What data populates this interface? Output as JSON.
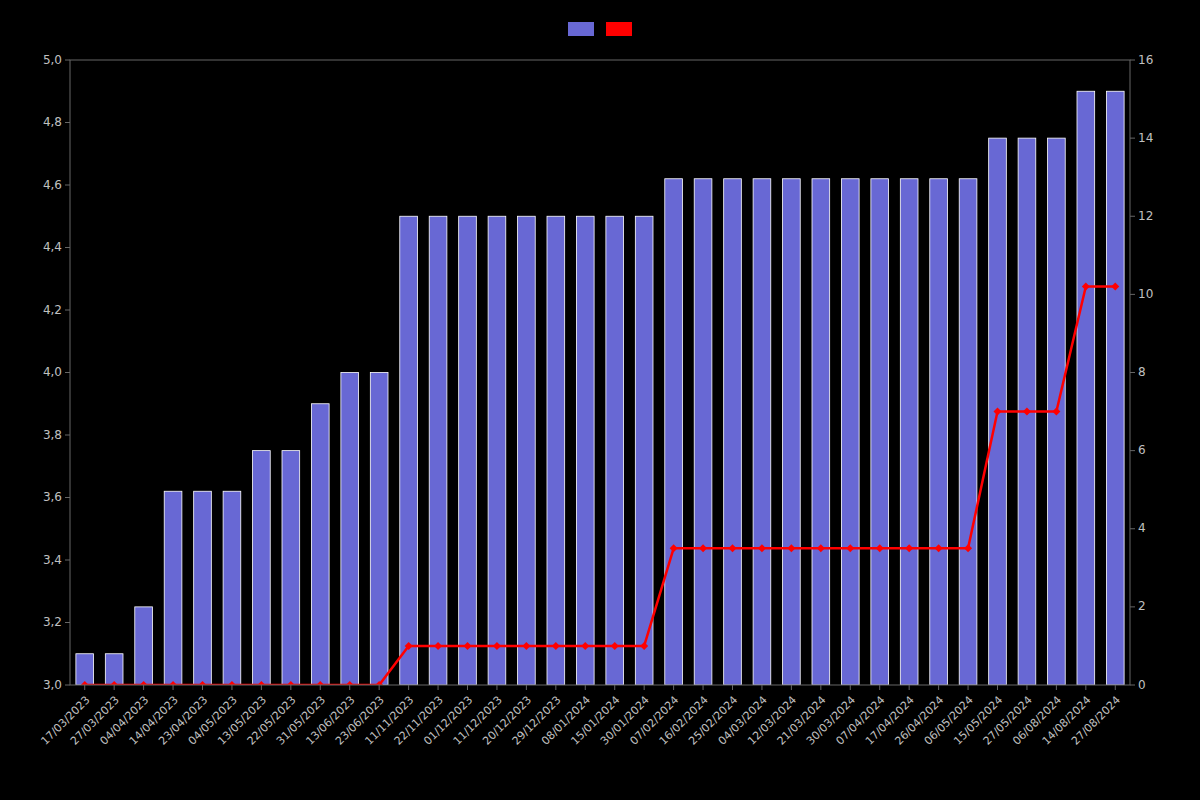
{
  "chart_data": {
    "type": "bar",
    "categories": [
      "17/03/2023",
      "27/03/2023",
      "04/04/2023",
      "14/04/2023",
      "23/04/2023",
      "04/05/2023",
      "13/05/2023",
      "22/05/2023",
      "31/05/2023",
      "13/06/2023",
      "23/06/2023",
      "11/11/2023",
      "22/11/2023",
      "01/12/2023",
      "11/12/2023",
      "20/12/2023",
      "29/12/2023",
      "08/01/2024",
      "15/01/2024",
      "30/01/2024",
      "07/02/2024",
      "16/02/2024",
      "25/02/2024",
      "04/03/2024",
      "12/03/2024",
      "21/03/2024",
      "30/03/2024",
      "07/04/2024",
      "17/04/2024",
      "26/04/2024",
      "06/05/2024",
      "15/05/2024",
      "27/05/2024",
      "06/08/2024",
      "14/08/2024",
      "27/08/2024"
    ],
    "series": [
      {
        "type": "bar",
        "color": "#6868d4",
        "values": [
          3.1,
          3.1,
          3.25,
          3.62,
          3.62,
          3.62,
          3.75,
          3.75,
          3.9,
          4.0,
          4.0,
          4.5,
          4.5,
          4.5,
          4.5,
          4.5,
          4.5,
          4.5,
          4.5,
          4.5,
          4.62,
          4.62,
          4.62,
          4.62,
          4.62,
          4.62,
          4.62,
          4.62,
          4.62,
          4.62,
          4.62,
          4.75,
          4.75,
          4.75,
          4.9,
          4.9
        ]
      },
      {
        "type": "line",
        "color": "#ff0000",
        "axis": "y2",
        "marker": "diamond",
        "values": [
          0,
          0,
          0,
          0,
          0,
          0,
          0,
          0,
          0,
          0,
          0,
          1.0,
          1.0,
          1.0,
          1.0,
          1.0,
          1.0,
          1.0,
          1.0,
          1.0,
          3.5,
          3.5,
          3.5,
          3.5,
          3.5,
          3.5,
          3.5,
          3.5,
          3.5,
          3.5,
          3.5,
          7.0,
          7.0,
          7.0,
          10.2,
          10.2
        ]
      }
    ],
    "ylim": [
      3.0,
      5.0
    ],
    "yticks": [
      {
        "value": 3.0,
        "label": "3,0"
      },
      {
        "value": 3.2,
        "label": "3,2"
      },
      {
        "value": 3.4,
        "label": "3,4"
      },
      {
        "value": 3.6,
        "label": "3,6"
      },
      {
        "value": 3.8,
        "label": "3,8"
      },
      {
        "value": 4.0,
        "label": "4,0"
      },
      {
        "value": 4.2,
        "label": "4,2"
      },
      {
        "value": 4.4,
        "label": "4,4"
      },
      {
        "value": 4.6,
        "label": "4,6"
      },
      {
        "value": 4.8,
        "label": "4,8"
      },
      {
        "value": 5.0,
        "label": "5,0"
      }
    ],
    "y2lim": [
      0,
      16
    ],
    "y2ticks": [
      0,
      2,
      4,
      6,
      8,
      10,
      12,
      14,
      16
    ],
    "grid": false,
    "legend": "top"
  }
}
